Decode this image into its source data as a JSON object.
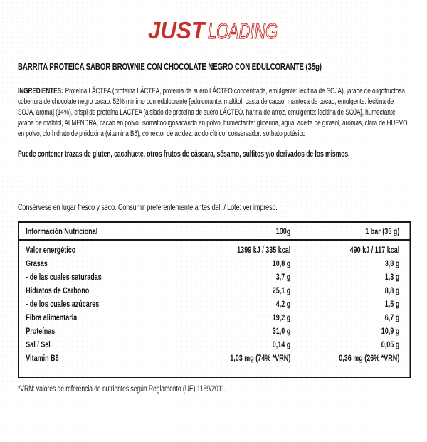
{
  "logo": {
    "just": "JUST",
    "loading": "LOADING",
    "brand_red": "#C5322D"
  },
  "product": {
    "title": "BARRITA PROTEICA SABOR BROWNIE CON CHOCOLATE NEGRO CON EDULCORANTE (35g)"
  },
  "ingredients": {
    "label": "INGREDIENTES:",
    "text": "Proteína LÁCTEA (proteína LÁCTEA, proteína de suero LÁCTEO concentrada, emulgente: lecitina de SOJA), jarabe de oligofructosa, cobertura de chocolate negro cacao: 52% mínimo con edulcorante [edulcorante: maltitol, pasta de cacao, manteca de cacao, emulgente: lecitina de SOJA, aroma] (14%), crispi de proteína LÁCTEA [aislado de proteína de suero LÁCTEO, harina de arroz, emulgente: lecitina de SOJA], humectante: jarabe de maltitol, ALMENDRA, cacao en polvo, isomaltooligosacárido en polvo, humectante: glicerina, agua, aceite de girasol, aromas, clara de HUEVO en polvo, clorhidrato de piridoxina (vitamina B6), corrector de acidez: ácido cítrico, conservador: sorbato potásico"
  },
  "allergen_notice": "Puede contener trazas de gluten, cacahuete, otros frutos de cáscara, sésamo, sulfitos y/o derivados de los mismos.",
  "storage_notice": "Consérvese en lugar fresco y seco. Consumir preferentemente antes del: / Lote: ver impreso.",
  "nutrition_table": {
    "headers": [
      "Información Nutricional",
      "100g",
      "1 bar (35 g)"
    ],
    "rows": [
      {
        "label": "Valor energético",
        "per_100g": "1399 kJ / 335 kcal",
        "per_bar": "490 kJ / 117 kcal"
      },
      {
        "label": "Grasas",
        "per_100g": "10,8 g",
        "per_bar": "3,8 g"
      },
      {
        "label": "- de las cuales saturadas",
        "per_100g": "3,7 g",
        "per_bar": "1,3 g"
      },
      {
        "label": "Hidratos de Carbono",
        "per_100g": "25,1 g",
        "per_bar": "8,8 g"
      },
      {
        "label": "- de los cuales azúcares",
        "per_100g": "4,2 g",
        "per_bar": "1,5 g"
      },
      {
        "label": "Fibra alimentaria",
        "per_100g": "19,2 g",
        "per_bar": "6,7 g"
      },
      {
        "label": "Proteínas",
        "per_100g": "31,0 g",
        "per_bar": "10,9 g"
      },
      {
        "label": "Sal / Sel",
        "per_100g": "0,14 g",
        "per_bar": "0,05 g"
      },
      {
        "label": "Vitamin B6",
        "per_100g": "1,03 mg (74% *VRN)",
        "per_bar": "0,36 mg (26% *VRN)"
      }
    ]
  },
  "footnote": "*VRN: valores de referencia de nutrientes según Reglamento (UE) 1169/2011."
}
